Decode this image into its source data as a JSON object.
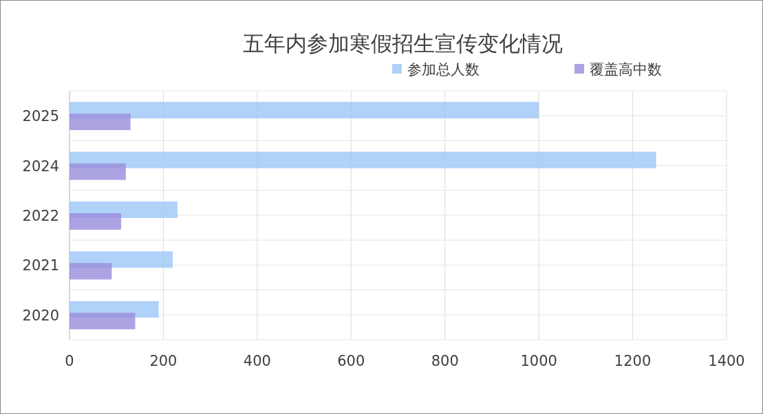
{
  "chart_data": {
    "type": "bar",
    "orientation": "horizontal",
    "title": "五年内参加寒假招生宣传变化情况",
    "categories": [
      "2025",
      "2024",
      "2022",
      "2021",
      "2020"
    ],
    "series": [
      {
        "name": "参加总人数",
        "color": "#9fc8f8",
        "values": [
          1000,
          1250,
          230,
          220,
          190
        ]
      },
      {
        "name": "覆盖高中数",
        "color": "#9a8fdc",
        "values": [
          130,
          120,
          110,
          90,
          140
        ]
      }
    ],
    "xlim": [
      0,
      1400
    ],
    "xticks": [
      0,
      200,
      400,
      600,
      800,
      1000,
      1200,
      1400
    ],
    "grid": true,
    "legend": "top right"
  }
}
